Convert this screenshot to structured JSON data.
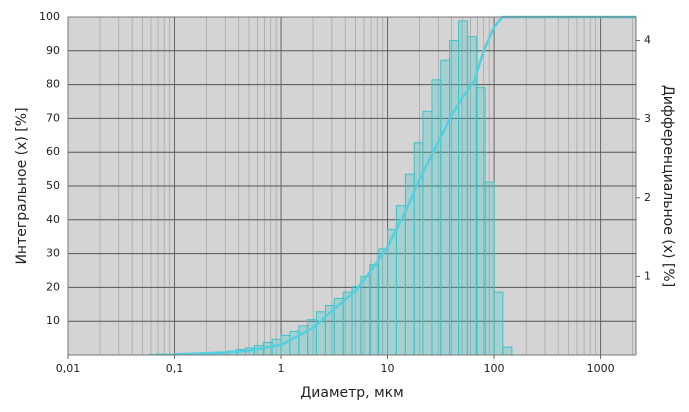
{
  "chart_data": {
    "type": "combo",
    "x_label": "Диаметр, мкм",
    "y_label": "Интегральное (x) [%]",
    "y2_label": "Дифференциальное (x) [%]",
    "xscale": "log",
    "xlim": [
      0.01,
      2150
    ],
    "xticks": [
      {
        "value": 0.01,
        "label": "0,01"
      },
      {
        "value": 0.1,
        "label": "0,1"
      },
      1,
      10,
      100,
      1000
    ],
    "ylim": [
      0,
      100
    ],
    "yticks": [
      10,
      20,
      30,
      40,
      50,
      60,
      70,
      80,
      90,
      100
    ],
    "y2lim": [
      0,
      4.3
    ],
    "y2ticks": [
      1,
      2,
      3,
      4
    ],
    "grid": true,
    "minor_grid": true,
    "series": [
      {
        "type": "histogram",
        "axis": "y2",
        "color": "#3cc4c8",
        "bins": [
          0.0562,
          0.0681,
          0.0825,
          0.1,
          0.121,
          0.147,
          0.178,
          0.215,
          0.261,
          0.316,
          0.383,
          0.464,
          0.562,
          0.681,
          0.825,
          1,
          1.21,
          1.47,
          1.78,
          2.15,
          2.61,
          3.16,
          3.83,
          4.64,
          5.62,
          6.81,
          8.25,
          10,
          12.1,
          14.7,
          17.8,
          21.5,
          26.1,
          31.6,
          38.3,
          46.4,
          56.2,
          68.1,
          82.5,
          100,
          121,
          147
        ],
        "values": [
          0.005,
          0.01,
          0.01,
          0.015,
          0.02,
          0.025,
          0.03,
          0.035,
          0.04,
          0.05,
          0.07,
          0.09,
          0.12,
          0.16,
          0.2,
          0.25,
          0.3,
          0.37,
          0.45,
          0.55,
          0.63,
          0.72,
          0.8,
          0.87,
          1.0,
          1.15,
          1.35,
          1.6,
          1.9,
          2.3,
          2.7,
          3.1,
          3.5,
          3.75,
          4.0,
          4.25,
          4.05,
          3.4,
          2.2,
          0.8,
          0.1
        ]
      },
      {
        "type": "line",
        "color": "#55cfe0",
        "x": [
          0.1,
          0.3,
          0.5,
          1,
          2,
          3,
          5,
          7,
          10,
          15,
          20,
          30,
          40,
          50,
          65,
          80,
          100,
          120,
          2150
        ],
        "values": [
          0.2,
          0.7,
          1.3,
          3,
          8,
          13,
          19,
          25,
          32,
          43,
          52,
          63,
          71,
          76,
          81,
          90,
          97,
          100,
          100
        ]
      }
    ]
  }
}
